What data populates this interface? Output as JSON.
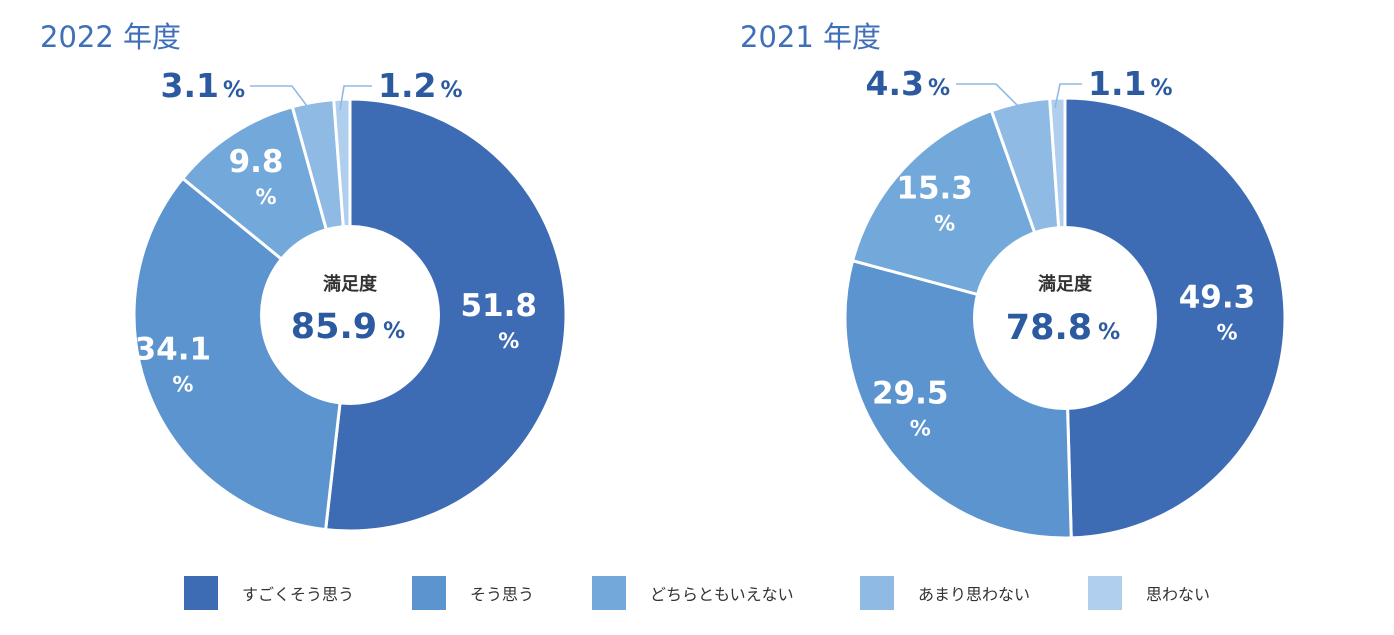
{
  "colors": [
    "#3e6cb4",
    "#5b94cf",
    "#73a8da",
    "#8fbae4",
    "#b0cfee"
  ],
  "legend": [
    "すごくそう思う",
    "そう思う",
    "どちらともいえない",
    "あまり思わない",
    "思わない"
  ],
  "chart_data": [
    {
      "type": "pie",
      "title": "2022 年度",
      "categories": [
        "すごくそう思う",
        "そう思う",
        "どちらともいえない",
        "あまり思わない",
        "思わない"
      ],
      "values": [
        51.8,
        34.1,
        9.8,
        3.1,
        1.2
      ],
      "value_labels": [
        "51.8",
        "34.1",
        "9.8",
        "3.1",
        "1.2"
      ],
      "unit": "%",
      "center_label": "満足度",
      "center_value": "85.9",
      "donut": true
    },
    {
      "type": "pie",
      "title": "2021 年度",
      "categories": [
        "すごくそう思う",
        "そう思う",
        "どちらともいえない",
        "あまり思わない",
        "思わない"
      ],
      "values": [
        49.3,
        29.5,
        15.3,
        4.3,
        1.1
      ],
      "value_labels": [
        "49.3",
        "29.5",
        "15.3",
        "4.3",
        "1.1"
      ],
      "unit": "%",
      "center_label": "満足度",
      "center_value": "78.8",
      "donut": true
    }
  ]
}
